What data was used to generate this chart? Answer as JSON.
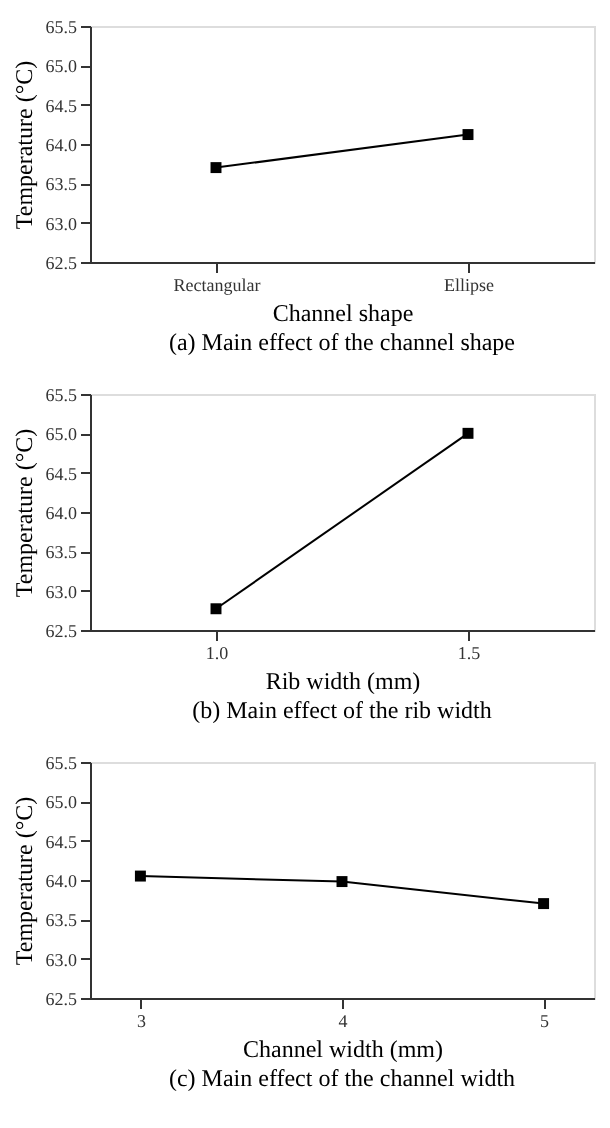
{
  "chart_data": [
    {
      "type": "line",
      "title": "(a) Main effect of the channel shape",
      "xlabel": "Channel shape",
      "ylabel": "Temperature (°C)",
      "categories": [
        "Rectangular",
        "Ellipse"
      ],
      "series": [
        {
          "color": "#000000",
          "values": [
            63.7,
            64.12
          ]
        }
      ],
      "ylim": [
        62.5,
        65.5
      ],
      "yticks": [
        62.5,
        {
          "value": 63,
          "label": "63.0"
        },
        63.5,
        {
          "value": 64,
          "label": "64.0"
        },
        64.5,
        {
          "value": 65,
          "label": "65.0"
        },
        65.5
      ],
      "marker": "square",
      "line_style": "solid",
      "grid": false
    },
    {
      "type": "line",
      "title": "(b) Main effect of the rib width",
      "xlabel": "Rib width (mm)",
      "ylabel": "Temperature (°C)",
      "x": [
        1.0,
        1.5
      ],
      "series": [
        {
          "color": "#000000",
          "values": [
            62.77,
            65.0
          ]
        }
      ],
      "xlim": [
        0.75,
        1.75
      ],
      "xticks": [
        {
          "value": 1,
          "label": "1.0"
        },
        {
          "value": 1.5,
          "label": "1.5"
        }
      ],
      "ylim": [
        62.5,
        65.5
      ],
      "yticks": [
        62.5,
        {
          "value": 63,
          "label": "63.0"
        },
        63.5,
        {
          "value": 64,
          "label": "64.0"
        },
        64.5,
        {
          "value": 65,
          "label": "65.0"
        },
        65.5
      ],
      "marker": "square",
      "line_style": "solid",
      "grid": false
    },
    {
      "type": "line",
      "title": "(c) Main effect of the channel width",
      "xlabel": "Channel width (mm)",
      "ylabel": "Temperature (°C)",
      "x": [
        3,
        4,
        5
      ],
      "series": [
        {
          "color": "#000000",
          "values": [
            64.05,
            63.98,
            63.7
          ]
        }
      ],
      "xlim": [
        2.75,
        5.25
      ],
      "xticks": [
        3,
        4,
        5
      ],
      "ylim": [
        62.5,
        65.5
      ],
      "yticks": [
        62.5,
        {
          "value": 63,
          "label": "63.0"
        },
        63.5,
        {
          "value": 64,
          "label": "64.0"
        },
        64.5,
        {
          "value": 65,
          "label": "65.0"
        },
        65.5
      ],
      "marker": "square",
      "line_style": "solid",
      "grid": false
    }
  ]
}
